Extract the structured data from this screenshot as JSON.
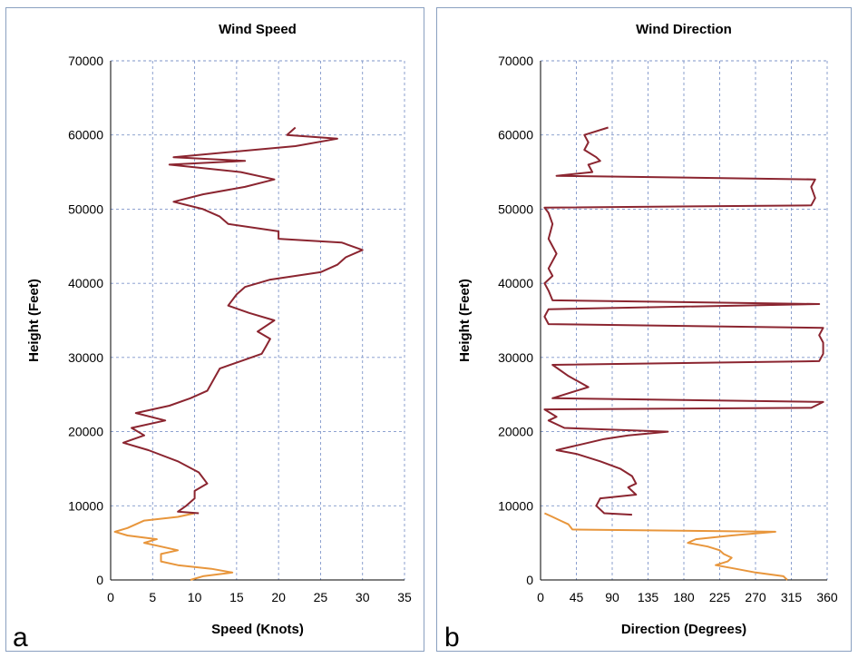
{
  "chart_data": [
    {
      "panel_letter": "a",
      "type": "line",
      "title": "Wind Speed",
      "xlabel": "Speed (Knots)",
      "ylabel": "Height (Feet)",
      "xlim": [
        0,
        35
      ],
      "ylim": [
        0,
        70000
      ],
      "xticks": [
        0,
        5,
        10,
        15,
        20,
        25,
        30,
        35
      ],
      "yticks": [
        0,
        10000,
        20000,
        30000,
        40000,
        50000,
        60000,
        70000
      ],
      "grid": true,
      "series": [
        {
          "color": "#e8963c",
          "points": [
            [
              9.5,
              0
            ],
            [
              11,
              500
            ],
            [
              14.5,
              1000
            ],
            [
              12,
              1500
            ],
            [
              8,
              2000
            ],
            [
              6,
              2500
            ],
            [
              6,
              3500
            ],
            [
              8,
              4000
            ],
            [
              6,
              4500
            ],
            [
              4,
              5000
            ],
            [
              5.5,
              5500
            ],
            [
              2,
              6000
            ],
            [
              0.5,
              6500
            ],
            [
              2,
              7000
            ],
            [
              4,
              8000
            ],
            [
              8,
              8500
            ],
            [
              10,
              9000
            ]
          ]
        },
        {
          "color": "#8b2530",
          "points": [
            [
              10.5,
              9000
            ],
            [
              8,
              9200
            ],
            [
              9,
              10000
            ],
            [
              10,
              11000
            ],
            [
              10,
              12000
            ],
            [
              11.5,
              13000
            ],
            [
              10.5,
              14500
            ],
            [
              8,
              16000
            ],
            [
              4.5,
              17500
            ],
            [
              1.5,
              18500
            ],
            [
              4,
              19500
            ],
            [
              2.5,
              20500
            ],
            [
              6.5,
              21500
            ],
            [
              3,
              22500
            ],
            [
              7,
              23500
            ],
            [
              9.5,
              24500
            ],
            [
              11.5,
              25500
            ],
            [
              12,
              26500
            ],
            [
              12.5,
              27500
            ],
            [
              13,
              28500
            ],
            [
              15.5,
              29500
            ],
            [
              18,
              30500
            ],
            [
              18.5,
              31500
            ],
            [
              19,
              32500
            ],
            [
              17.5,
              33500
            ],
            [
              19.5,
              35000
            ],
            [
              16.5,
              36000
            ],
            [
              14,
              37000
            ],
            [
              15,
              38500
            ],
            [
              16,
              39500
            ],
            [
              19,
              40500
            ],
            [
              25,
              41500
            ],
            [
              27,
              42500
            ],
            [
              28,
              43500
            ],
            [
              30,
              44500
            ],
            [
              27.5,
              45500
            ],
            [
              20,
              46000
            ],
            [
              20,
              47000
            ],
            [
              14,
              48000
            ],
            [
              13,
              49000
            ],
            [
              11,
              50000
            ],
            [
              7.5,
              51000
            ],
            [
              11,
              52000
            ],
            [
              16,
              53000
            ],
            [
              19.5,
              54000
            ],
            [
              15.5,
              55000
            ],
            [
              7,
              56000
            ],
            [
              16,
              56500
            ],
            [
              7.5,
              57000
            ],
            [
              22,
              58500
            ],
            [
              27,
              59500
            ],
            [
              21,
              60000
            ],
            [
              22,
              61000
            ]
          ]
        }
      ]
    },
    {
      "panel_letter": "b",
      "type": "line",
      "title": "Wind Direction",
      "xlabel": "Direction (Degrees)",
      "ylabel": "Height (Feet)",
      "xlim": [
        0,
        360
      ],
      "ylim": [
        0,
        70000
      ],
      "xticks": [
        0,
        45,
        90,
        135,
        180,
        225,
        270,
        315,
        360
      ],
      "yticks": [
        0,
        10000,
        20000,
        30000,
        40000,
        50000,
        60000,
        70000
      ],
      "grid": true,
      "series": [
        {
          "color": "#e8963c",
          "points": [
            [
              310,
              0
            ],
            [
              305,
              500
            ],
            [
              270,
              1000
            ],
            [
              245,
              1500
            ],
            [
              220,
              2000
            ],
            [
              235,
              2500
            ],
            [
              240,
              3000
            ],
            [
              230,
              3500
            ],
            [
              225,
              4000
            ],
            [
              210,
              4500
            ],
            [
              185,
              5000
            ],
            [
              195,
              5500
            ],
            [
              240,
              6000
            ],
            [
              295,
              6500
            ],
            [
              40,
              6800
            ],
            [
              35,
              7500
            ],
            [
              25,
              8000
            ],
            [
              15,
              8500
            ],
            [
              5,
              9000
            ]
          ]
        },
        {
          "color": "#8b2530",
          "points": [
            [
              115,
              8800
            ],
            [
              80,
              9000
            ],
            [
              70,
              10000
            ],
            [
              75,
              11000
            ],
            [
              120,
              11500
            ],
            [
              110,
              12500
            ],
            [
              120,
              13000
            ],
            [
              115,
              14000
            ],
            [
              100,
              15000
            ],
            [
              75,
              16000
            ],
            [
              45,
              17000
            ],
            [
              20,
              17500
            ],
            [
              40,
              18000
            ],
            [
              60,
              18500
            ],
            [
              80,
              19000
            ],
            [
              110,
              19500
            ],
            [
              160,
              20000
            ],
            [
              30,
              20500
            ],
            [
              10,
              21500
            ],
            [
              20,
              22000
            ],
            [
              5,
              23000
            ],
            [
              340,
              23200
            ],
            [
              355,
              24000
            ],
            [
              15,
              24500
            ],
            [
              30,
              25000
            ],
            [
              60,
              26000
            ],
            [
              35,
              27500
            ],
            [
              15,
              29000
            ],
            [
              350,
              29500
            ],
            [
              355,
              30500
            ],
            [
              355,
              32000
            ],
            [
              350,
              33000
            ],
            [
              355,
              34000
            ],
            [
              10,
              34500
            ],
            [
              5,
              35500
            ],
            [
              10,
              36500
            ],
            [
              350,
              37200
            ],
            [
              15,
              37700
            ],
            [
              10,
              39000
            ],
            [
              5,
              40000
            ],
            [
              15,
              41000
            ],
            [
              10,
              42000
            ],
            [
              20,
              44000
            ],
            [
              10,
              46000
            ],
            [
              15,
              48000
            ],
            [
              10,
              49500
            ],
            [
              5,
              50200
            ],
            [
              340,
              50500
            ],
            [
              345,
              51500
            ],
            [
              340,
              53000
            ],
            [
              345,
              54000
            ],
            [
              20,
              54500
            ],
            [
              65,
              55000
            ],
            [
              60,
              56000
            ],
            [
              75,
              56500
            ],
            [
              70,
              57000
            ],
            [
              55,
              58000
            ],
            [
              60,
              59000
            ],
            [
              55,
              60000
            ],
            [
              85,
              61000
            ]
          ]
        }
      ]
    }
  ]
}
